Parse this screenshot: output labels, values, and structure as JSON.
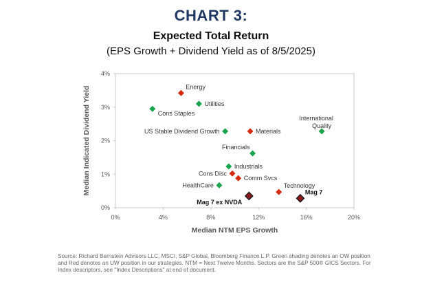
{
  "chart_label": "CHART 3:",
  "chart_data": {
    "type": "scatter",
    "title": "Expected Total Return",
    "subtitle": "(EPS Growth + Dividend Yield as of 8/5/2025)",
    "xlabel": "Median NTM EPS Growth",
    "ylabel": "Median Indicated Dividend Yield",
    "xlim": [
      0,
      20
    ],
    "ylim": [
      0,
      4
    ],
    "x_ticks": [
      "0%",
      "4%",
      "8%",
      "12%",
      "16%",
      "20%"
    ],
    "y_ticks": [
      "0%",
      "1%",
      "2%",
      "3%",
      "4%"
    ],
    "grid": false,
    "colors": {
      "overweight": "#1aa34a",
      "underweight": "#d42a0f",
      "index": "#8b1a1a"
    },
    "points": [
      {
        "name": "Energy",
        "x": 5.5,
        "y": 3.42,
        "group": "underweight",
        "label_pos": "right-up"
      },
      {
        "name": "Utilities",
        "x": 7.0,
        "y": 3.1,
        "group": "overweight",
        "label_pos": "right"
      },
      {
        "name": "Cons Staples",
        "x": 3.1,
        "y": 2.95,
        "group": "overweight",
        "label_pos": "right-down"
      },
      {
        "name": "International Quality",
        "x": 17.3,
        "y": 2.28,
        "group": "overweight",
        "label_pos": "above-wrap"
      },
      {
        "name": "US Stable Dividend Growth",
        "x": 9.2,
        "y": 2.28,
        "group": "overweight",
        "label_pos": "left"
      },
      {
        "name": "Materials",
        "x": 11.3,
        "y": 2.28,
        "group": "underweight",
        "label_pos": "right"
      },
      {
        "name": "Financials",
        "x": 11.5,
        "y": 1.62,
        "group": "overweight",
        "label_pos": "left-up"
      },
      {
        "name": "Industrials",
        "x": 9.5,
        "y": 1.23,
        "group": "overweight",
        "label_pos": "right"
      },
      {
        "name": "Cons Disc",
        "x": 9.8,
        "y": 1.02,
        "group": "underweight",
        "label_pos": "left"
      },
      {
        "name": "Comm Svcs",
        "x": 10.3,
        "y": 0.88,
        "group": "underweight",
        "label_pos": "right"
      },
      {
        "name": "HealthCare",
        "x": 8.7,
        "y": 0.67,
        "group": "overweight",
        "label_pos": "left"
      },
      {
        "name": "Technology",
        "x": 13.7,
        "y": 0.47,
        "group": "underweight",
        "label_pos": "right-up"
      },
      {
        "name": "Mag 7 ex NVDA",
        "x": 11.2,
        "y": 0.35,
        "group": "index",
        "label_pos": "left-down",
        "bold": true
      },
      {
        "name": "Mag 7",
        "x": 15.5,
        "y": 0.28,
        "group": "index",
        "label_pos": "right-up",
        "bold": true
      }
    ]
  },
  "source": "Source: Richard Bernstein Advisors LLC, MSCI, S&P Global, Bloomberg Finance L.P. Green shading denotes an OW position and Red denotes an UW position in our strategies. NTM = Next Twelve Months. Sectors are the S&P 500® GICS Sectors. For Index descriptors, see \"Index Descriptions\" at end of document."
}
